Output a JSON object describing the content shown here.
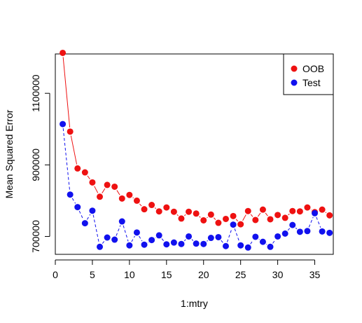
{
  "chart_data": {
    "type": "line",
    "title": "",
    "xlabel": "1:mtry",
    "ylabel": "Mean Squared Error",
    "xlim": [
      0,
      37.5
    ],
    "ylim": [
      650000,
      1210000
    ],
    "x_ticks": [
      0,
      5,
      10,
      15,
      20,
      25,
      30,
      35
    ],
    "y_ticks": [
      700000,
      900000,
      1100000
    ],
    "x_tick_labels": [
      "0",
      "5",
      "10",
      "15",
      "20",
      "25",
      "30",
      "35"
    ],
    "y_tick_labels": [
      "700000",
      "900000",
      "1100000"
    ],
    "legend_position": "top-right",
    "grid": false,
    "x": [
      1,
      2,
      3,
      4,
      5,
      6,
      7,
      8,
      9,
      10,
      11,
      12,
      13,
      14,
      15,
      16,
      17,
      18,
      19,
      20,
      21,
      22,
      23,
      24,
      25,
      26,
      27,
      28,
      29,
      30,
      31,
      32,
      33,
      34,
      35,
      36,
      37
    ],
    "series": [
      {
        "name": "OOB",
        "color": "#ee1111",
        "line_style": "solid",
        "values": [
          1213000,
          993000,
          890000,
          879000,
          851000,
          811000,
          844000,
          839000,
          806000,
          816000,
          800000,
          776000,
          788000,
          770000,
          781000,
          769000,
          750000,
          769000,
          764000,
          745000,
          761000,
          738000,
          749000,
          757000,
          734000,
          771000,
          746000,
          775000,
          748000,
          760000,
          752000,
          771000,
          770000,
          781000,
          768000,
          775000,
          759000
        ]
      },
      {
        "name": "Test",
        "color": "#1111ee",
        "line_style": "dashed",
        "values": [
          1014000,
          817000,
          782000,
          737000,
          772000,
          671000,
          697000,
          691000,
          742000,
          675000,
          711000,
          677000,
          690000,
          703000,
          678000,
          683000,
          679000,
          700000,
          680000,
          679000,
          696000,
          698000,
          673000,
          733000,
          675000,
          669000,
          699000,
          685000,
          671000,
          700000,
          708000,
          732000,
          713000,
          715000,
          765000,
          714000,
          710000
        ]
      }
    ]
  }
}
